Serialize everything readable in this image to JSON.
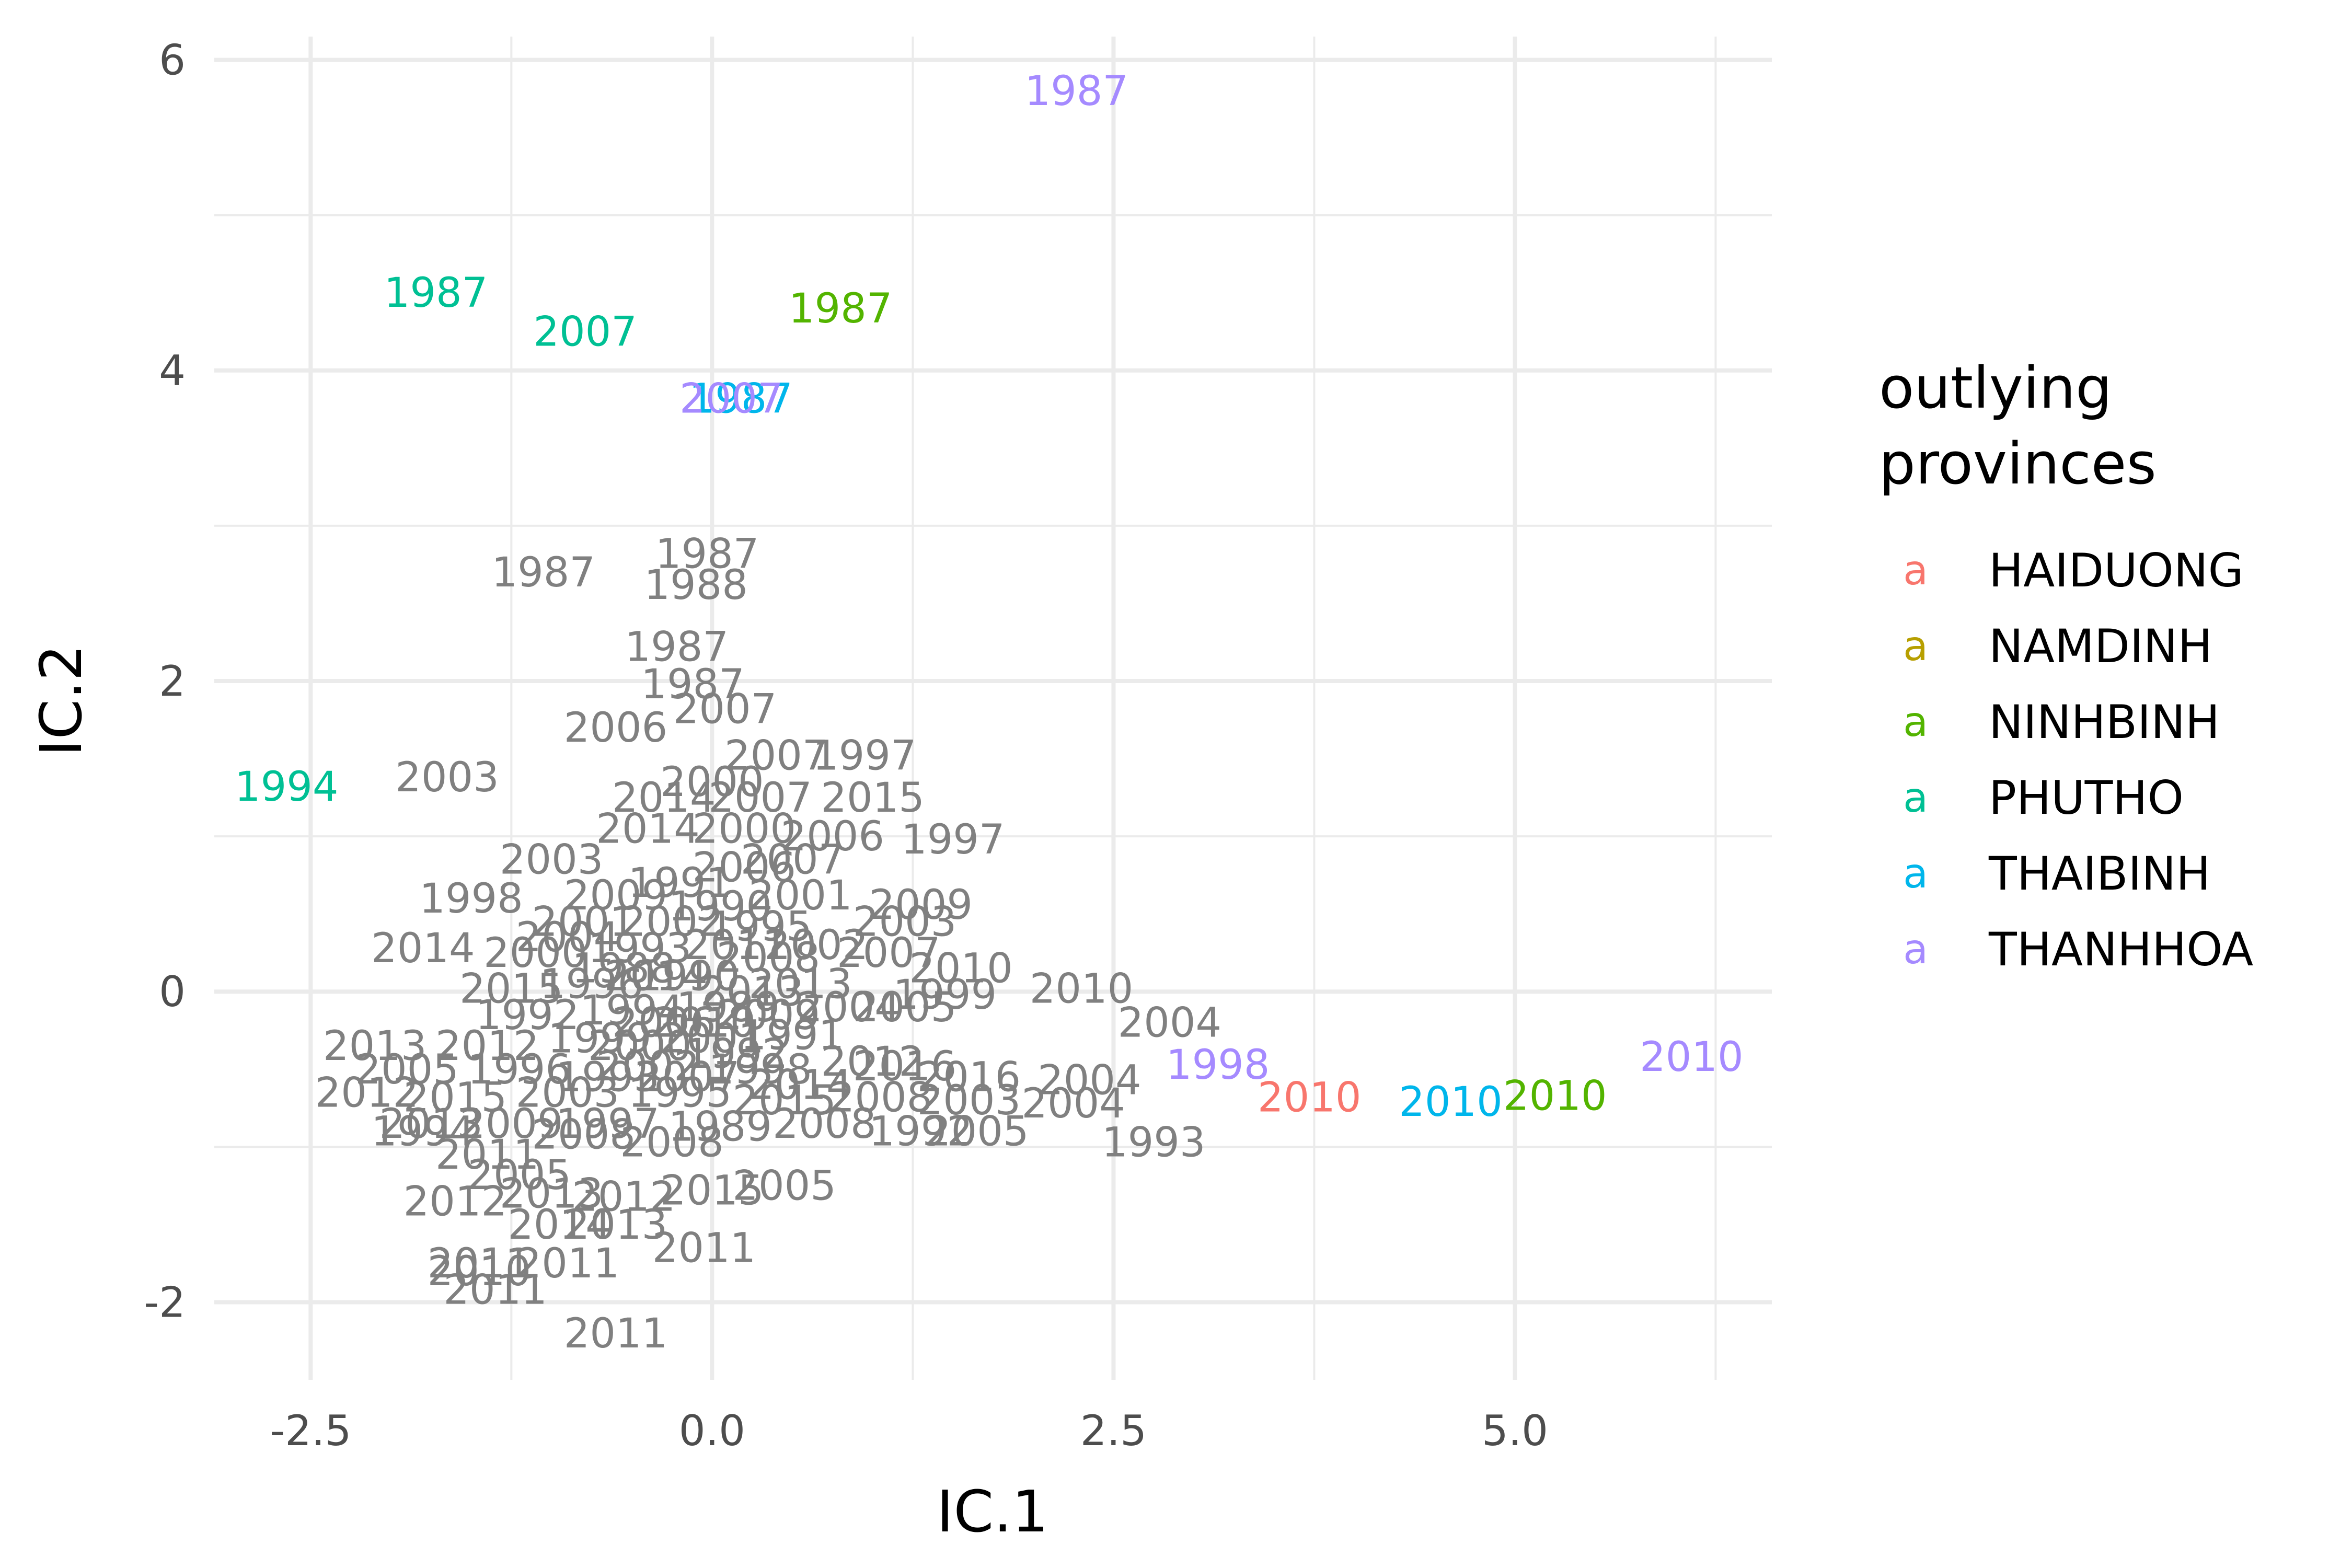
{
  "chart_data": {
    "type": "scatter",
    "title": "",
    "xlabel": "IC.1",
    "ylabel": "IC.2",
    "xlim": [
      -3.1,
      6.6
    ],
    "ylim": [
      -2.5,
      6.15
    ],
    "x_ticks": [
      {
        "v": -2.5,
        "label": "-2.5"
      },
      {
        "v": 0,
        "label": "0.0"
      },
      {
        "v": 2.5,
        "label": "2.5"
      },
      {
        "v": 5,
        "label": "5.0"
      }
    ],
    "y_ticks": [
      {
        "v": -2,
        "label": "-2"
      },
      {
        "v": 0,
        "label": "0"
      },
      {
        "v": 2,
        "label": "2"
      },
      {
        "v": 4,
        "label": "4"
      },
      {
        "v": 6,
        "label": "6"
      }
    ],
    "x_minor": [
      -1.25,
      1.25,
      3.75,
      6.25
    ],
    "y_minor": [
      -1,
      1,
      3,
      5
    ],
    "grid": true,
    "legend": {
      "title_lines": [
        "outlying",
        "provinces"
      ],
      "key_glyph": "a",
      "placement": "right",
      "entries": [
        {
          "name": "HAIDUONG",
          "color": "#F8766D"
        },
        {
          "name": "NAMDINH",
          "color": "#B79F00"
        },
        {
          "name": "NINHBINH",
          "color": "#53B400"
        },
        {
          "name": "PHUTHO",
          "color": "#00C094"
        },
        {
          "name": "THAIBINH",
          "color": "#00B6EB"
        },
        {
          "name": "THANHHOA",
          "color": "#A58AFF"
        }
      ]
    },
    "other_color": "#808080",
    "highlighted_points": [
      {
        "x": 2.27,
        "y": 5.8,
        "label": "1987",
        "group": "THANHHOA"
      },
      {
        "x": -1.72,
        "y": 4.5,
        "label": "1987",
        "group": "PHUTHO"
      },
      {
        "x": -0.79,
        "y": 4.25,
        "label": "2007",
        "group": "PHUTHO"
      },
      {
        "x": 0.8,
        "y": 4.4,
        "label": "1987",
        "group": "NINHBINH"
      },
      {
        "x": 0.18,
        "y": 3.82,
        "label": "1987",
        "group": "THAIBINH"
      },
      {
        "x": 0.12,
        "y": 3.82,
        "label": "2007",
        "group": "THANHHOA"
      },
      {
        "x": -2.65,
        "y": 1.32,
        "label": "1994",
        "group": "PHUTHO"
      },
      {
        "x": 3.15,
        "y": -0.47,
        "label": "1998",
        "group": "THANHHOA"
      },
      {
        "x": 3.72,
        "y": -0.68,
        "label": "2010",
        "group": "HAIDUONG"
      },
      {
        "x": 4.6,
        "y": -0.71,
        "label": "2010",
        "group": "THAIBINH"
      },
      {
        "x": 5.25,
        "y": -0.67,
        "label": "2010",
        "group": "NINHBINH"
      },
      {
        "x": 6.1,
        "y": -0.42,
        "label": "2010",
        "group": "THANHHOA"
      }
    ],
    "other_points": [
      {
        "x": -1.05,
        "y": 2.7,
        "label": "1987"
      },
      {
        "x": -0.03,
        "y": 2.82,
        "label": "1987"
      },
      {
        "x": -0.1,
        "y": 2.62,
        "label": "1988"
      },
      {
        "x": -0.22,
        "y": 2.22,
        "label": "1987"
      },
      {
        "x": -0.12,
        "y": 1.98,
        "label": "1987"
      },
      {
        "x": 0.08,
        "y": 1.82,
        "label": "2007"
      },
      {
        "x": -0.6,
        "y": 1.7,
        "label": "2006"
      },
      {
        "x": -1.65,
        "y": 1.38,
        "label": "2003"
      },
      {
        "x": 0.4,
        "y": 1.52,
        "label": "2007"
      },
      {
        "x": 0.95,
        "y": 1.52,
        "label": "1997"
      },
      {
        "x": 1.0,
        "y": 1.25,
        "label": "2015"
      },
      {
        "x": 0.0,
        "y": 1.35,
        "label": "2000"
      },
      {
        "x": -0.3,
        "y": 1.25,
        "label": "2014"
      },
      {
        "x": 0.3,
        "y": 1.25,
        "label": "2007"
      },
      {
        "x": -0.4,
        "y": 1.05,
        "label": "2014"
      },
      {
        "x": 0.2,
        "y": 1.05,
        "label": "2000"
      },
      {
        "x": 0.75,
        "y": 1.0,
        "label": "2006"
      },
      {
        "x": 1.5,
        "y": 0.98,
        "label": "1997"
      },
      {
        "x": 0.5,
        "y": 0.85,
        "label": "2007"
      },
      {
        "x": -1.0,
        "y": 0.85,
        "label": "2003"
      },
      {
        "x": -1.5,
        "y": 0.6,
        "label": "1998"
      },
      {
        "x": -0.6,
        "y": 0.62,
        "label": "2009"
      },
      {
        "x": -0.2,
        "y": 0.7,
        "label": "1991"
      },
      {
        "x": 0.55,
        "y": 0.62,
        "label": "2001"
      },
      {
        "x": 1.3,
        "y": 0.56,
        "label": "2009"
      },
      {
        "x": 1.2,
        "y": 0.45,
        "label": "2003"
      },
      {
        "x": -0.9,
        "y": 0.35,
        "label": "2004"
      },
      {
        "x": -0.25,
        "y": 0.45,
        "label": "2002"
      },
      {
        "x": 0.3,
        "y": 0.42,
        "label": "1995"
      },
      {
        "x": -1.8,
        "y": 0.28,
        "label": "2014"
      },
      {
        "x": -1.1,
        "y": 0.25,
        "label": "2000"
      },
      {
        "x": -0.45,
        "y": 0.28,
        "label": "1993"
      },
      {
        "x": 0.35,
        "y": 0.22,
        "label": "2008"
      },
      {
        "x": 1.1,
        "y": 0.25,
        "label": "2007"
      },
      {
        "x": 1.55,
        "y": 0.15,
        "label": "2010"
      },
      {
        "x": -1.25,
        "y": 0.02,
        "label": "2015"
      },
      {
        "x": -0.75,
        "y": 0.05,
        "label": "1996"
      },
      {
        "x": -0.15,
        "y": 0.1,
        "label": "1990"
      },
      {
        "x": 0.55,
        "y": 0.05,
        "label": "2013"
      },
      {
        "x": 1.45,
        "y": -0.02,
        "label": "1999"
      },
      {
        "x": 2.3,
        "y": 0.02,
        "label": "2010"
      },
      {
        "x": -1.15,
        "y": -0.15,
        "label": "1992"
      },
      {
        "x": -0.5,
        "y": -0.12,
        "label": "1994"
      },
      {
        "x": 0.1,
        "y": -0.1,
        "label": "1989"
      },
      {
        "x": 0.85,
        "y": -0.1,
        "label": "2004"
      },
      {
        "x": 1.2,
        "y": -0.1,
        "label": "2005"
      },
      {
        "x": 2.85,
        "y": -0.2,
        "label": "2004"
      },
      {
        "x": -2.1,
        "y": -0.35,
        "label": "2013"
      },
      {
        "x": -1.4,
        "y": -0.35,
        "label": "2012"
      },
      {
        "x": -0.7,
        "y": -0.3,
        "label": "1999"
      },
      {
        "x": 0.0,
        "y": -0.3,
        "label": "2001"
      },
      {
        "x": 0.5,
        "y": -0.28,
        "label": "1991"
      },
      {
        "x": -1.9,
        "y": -0.5,
        "label": "2005"
      },
      {
        "x": -1.2,
        "y": -0.5,
        "label": "1996"
      },
      {
        "x": -0.4,
        "y": -0.48,
        "label": "2002"
      },
      {
        "x": 0.3,
        "y": -0.5,
        "label": "1998"
      },
      {
        "x": 1.0,
        "y": -0.45,
        "label": "2012"
      },
      {
        "x": 1.2,
        "y": -0.48,
        "label": "2016"
      },
      {
        "x": 1.6,
        "y": -0.55,
        "label": "2016"
      },
      {
        "x": 2.35,
        "y": -0.57,
        "label": "2004"
      },
      {
        "x": -2.15,
        "y": -0.65,
        "label": "2012"
      },
      {
        "x": -1.6,
        "y": -0.68,
        "label": "2015"
      },
      {
        "x": -0.9,
        "y": -0.65,
        "label": "2003"
      },
      {
        "x": -0.2,
        "y": -0.65,
        "label": "1995"
      },
      {
        "x": 0.45,
        "y": -0.7,
        "label": "2015"
      },
      {
        "x": 1.05,
        "y": -0.68,
        "label": "2008"
      },
      {
        "x": 1.6,
        "y": -0.7,
        "label": "2003"
      },
      {
        "x": 2.25,
        "y": -0.72,
        "label": "2004"
      },
      {
        "x": -1.75,
        "y": -0.85,
        "label": "2013"
      },
      {
        "x": -1.25,
        "y": -0.85,
        "label": "2009"
      },
      {
        "x": -0.65,
        "y": -0.85,
        "label": "1997"
      },
      {
        "x": 0.05,
        "y": -0.87,
        "label": "1989"
      },
      {
        "x": 0.7,
        "y": -0.85,
        "label": "2008"
      },
      {
        "x": 1.3,
        "y": -0.9,
        "label": "1992"
      },
      {
        "x": 1.65,
        "y": -0.9,
        "label": "2005"
      },
      {
        "x": 2.75,
        "y": -0.97,
        "label": "1993"
      },
      {
        "x": -1.8,
        "y": -0.9,
        "label": "1994"
      },
      {
        "x": -1.4,
        "y": -1.05,
        "label": "2011"
      },
      {
        "x": -0.8,
        "y": -0.92,
        "label": "2008"
      },
      {
        "x": -0.25,
        "y": -0.97,
        "label": "2008"
      },
      {
        "x": -1.2,
        "y": -1.18,
        "label": "2005"
      },
      {
        "x": -1.6,
        "y": -1.35,
        "label": "2012"
      },
      {
        "x": -1.0,
        "y": -1.3,
        "label": "2013"
      },
      {
        "x": -0.55,
        "y": -1.32,
        "label": "2012"
      },
      {
        "x": 0.0,
        "y": -1.28,
        "label": "2015"
      },
      {
        "x": 0.45,
        "y": -1.25,
        "label": "2005"
      },
      {
        "x": -0.95,
        "y": -1.5,
        "label": "2014"
      },
      {
        "x": -0.6,
        "y": -1.5,
        "label": "2013"
      },
      {
        "x": -1.45,
        "y": -1.75,
        "label": "2011"
      },
      {
        "x": -0.9,
        "y": -1.75,
        "label": "2011"
      },
      {
        "x": -1.45,
        "y": -1.8,
        "label": "2010"
      },
      {
        "x": -1.35,
        "y": -1.92,
        "label": "2011"
      },
      {
        "x": -0.05,
        "y": -1.65,
        "label": "2011"
      },
      {
        "x": -0.6,
        "y": -2.2,
        "label": "2011"
      },
      {
        "x": -0.35,
        "y": 0.1,
        "label": "2014"
      },
      {
        "x": 0.25,
        "y": 0.0,
        "label": "2013"
      },
      {
        "x": -0.05,
        "y": -0.2,
        "label": "2010"
      },
      {
        "x": 0.35,
        "y": -0.15,
        "label": "2009"
      },
      {
        "x": -0.3,
        "y": -0.2,
        "label": "2006"
      },
      {
        "x": 0.15,
        "y": 0.3,
        "label": "2011"
      },
      {
        "x": -0.55,
        "y": 0.15,
        "label": "1988"
      },
      {
        "x": 0.05,
        "y": 0.55,
        "label": "1990"
      },
      {
        "x": -0.45,
        "y": -0.35,
        "label": "2000"
      },
      {
        "x": 0.15,
        "y": -0.4,
        "label": "1992"
      },
      {
        "x": 0.65,
        "y": 0.3,
        "label": "2002"
      },
      {
        "x": -0.8,
        "y": 0.45,
        "label": "2001"
      },
      {
        "x": -0.15,
        "y": -0.55,
        "label": "2007"
      },
      {
        "x": 0.55,
        "y": -0.6,
        "label": "2014"
      },
      {
        "x": -0.65,
        "y": -0.55,
        "label": "1993"
      },
      {
        "x": 0.2,
        "y": 0.8,
        "label": "2006"
      }
    ]
  }
}
